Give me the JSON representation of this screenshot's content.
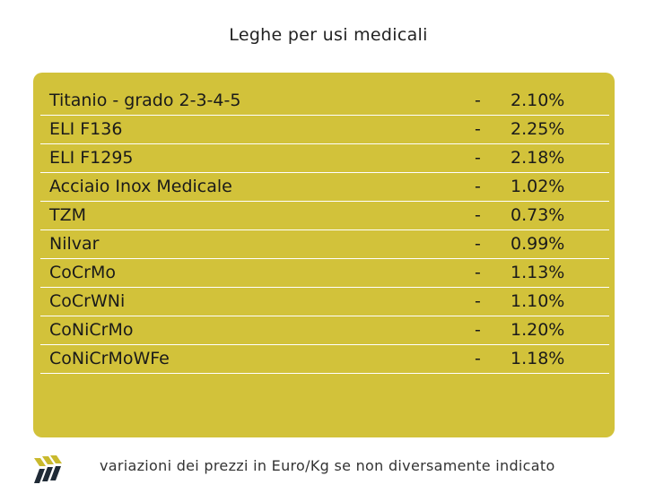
{
  "title": "Leghe per usi medicali",
  "table": {
    "rows": [
      {
        "name": "Titanio - grado 2-3-4-5",
        "sep": "-",
        "value": "2.10%"
      },
      {
        "name": "ELI F136",
        "sep": "-",
        "value": "2.25%"
      },
      {
        "name": "ELI F1295",
        "sep": "-",
        "value": "2.18%"
      },
      {
        "name": "Acciaio Inox Medicale",
        "sep": "-",
        "value": "1.02%"
      },
      {
        "name": "TZM",
        "sep": "-",
        "value": "0.73%"
      },
      {
        "name": "Nilvar",
        "sep": "-",
        "value": "0.99%"
      },
      {
        "name": "CoCrMo",
        "sep": "-",
        "value": "1.13%"
      },
      {
        "name": "CoCrWNi",
        "sep": "-",
        "value": "1.10%"
      },
      {
        "name": "CoNiCrMo",
        "sep": "-",
        "value": "1.20%"
      },
      {
        "name": "CoNiCrMoWFe",
        "sep": "-",
        "value": "1.18%"
      }
    ]
  },
  "footer": {
    "note": "variazioni dei prezzi in Euro/Kg se non diversamente indicato",
    "logo_icon": "brand-chevrons-icon"
  },
  "colors": {
    "panel": "#d2c23a",
    "logo_gold": "#c9b92e",
    "logo_dark": "#1f2a36"
  }
}
